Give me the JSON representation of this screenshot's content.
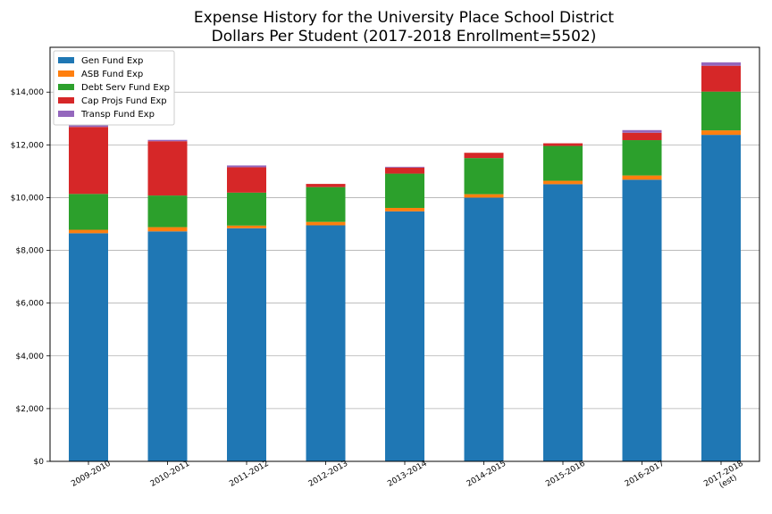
{
  "chart_data": {
    "type": "bar",
    "stacked": true,
    "title": "Expense History for the University Place School District",
    "subtitle": "Dollars Per Student (2017-2018 Enrollment=5502)",
    "xlabel": "",
    "ylabel": "",
    "categories": [
      "2009-2010",
      "2010-2011",
      "2011-2012",
      "2012-2013",
      "2013-2014",
      "2014-2015",
      "2015-2016",
      "2016-2017",
      "2017-2018\n(est)"
    ],
    "series": [
      {
        "name": "Gen Fund Exp",
        "color": "#1f77b4",
        "values": [
          8650,
          8720,
          8840,
          8950,
          9480,
          10000,
          10510,
          10680,
          12380
        ]
      },
      {
        "name": "ASB Fund Exp",
        "color": "#ff7f0e",
        "values": [
          130,
          160,
          100,
          130,
          130,
          130,
          130,
          160,
          170
        ]
      },
      {
        "name": "Debt Serv Fund Exp",
        "color": "#2ca02c",
        "values": [
          1360,
          1200,
          1250,
          1320,
          1300,
          1370,
          1320,
          1340,
          1470
        ]
      },
      {
        "name": "Cap Projs Fund Exp",
        "color": "#d62728",
        "values": [
          2540,
          2060,
          960,
          120,
          230,
          200,
          100,
          280,
          980
        ]
      },
      {
        "name": "Transp Fund Exp",
        "color": "#9467bd",
        "values": [
          70,
          50,
          70,
          0,
          30,
          0,
          0,
          100,
          130
        ]
      }
    ],
    "ylim": [
      0,
      15700
    ],
    "yticks": [
      0,
      2000,
      4000,
      6000,
      8000,
      10000,
      12000,
      14000
    ],
    "ytick_labels": [
      "$0",
      "$2,000",
      "$4,000",
      "$6,000",
      "$8,000",
      "$10,000",
      "$12,000",
      "$14,000"
    ],
    "grid": "horizontal",
    "legend": "top-left"
  }
}
